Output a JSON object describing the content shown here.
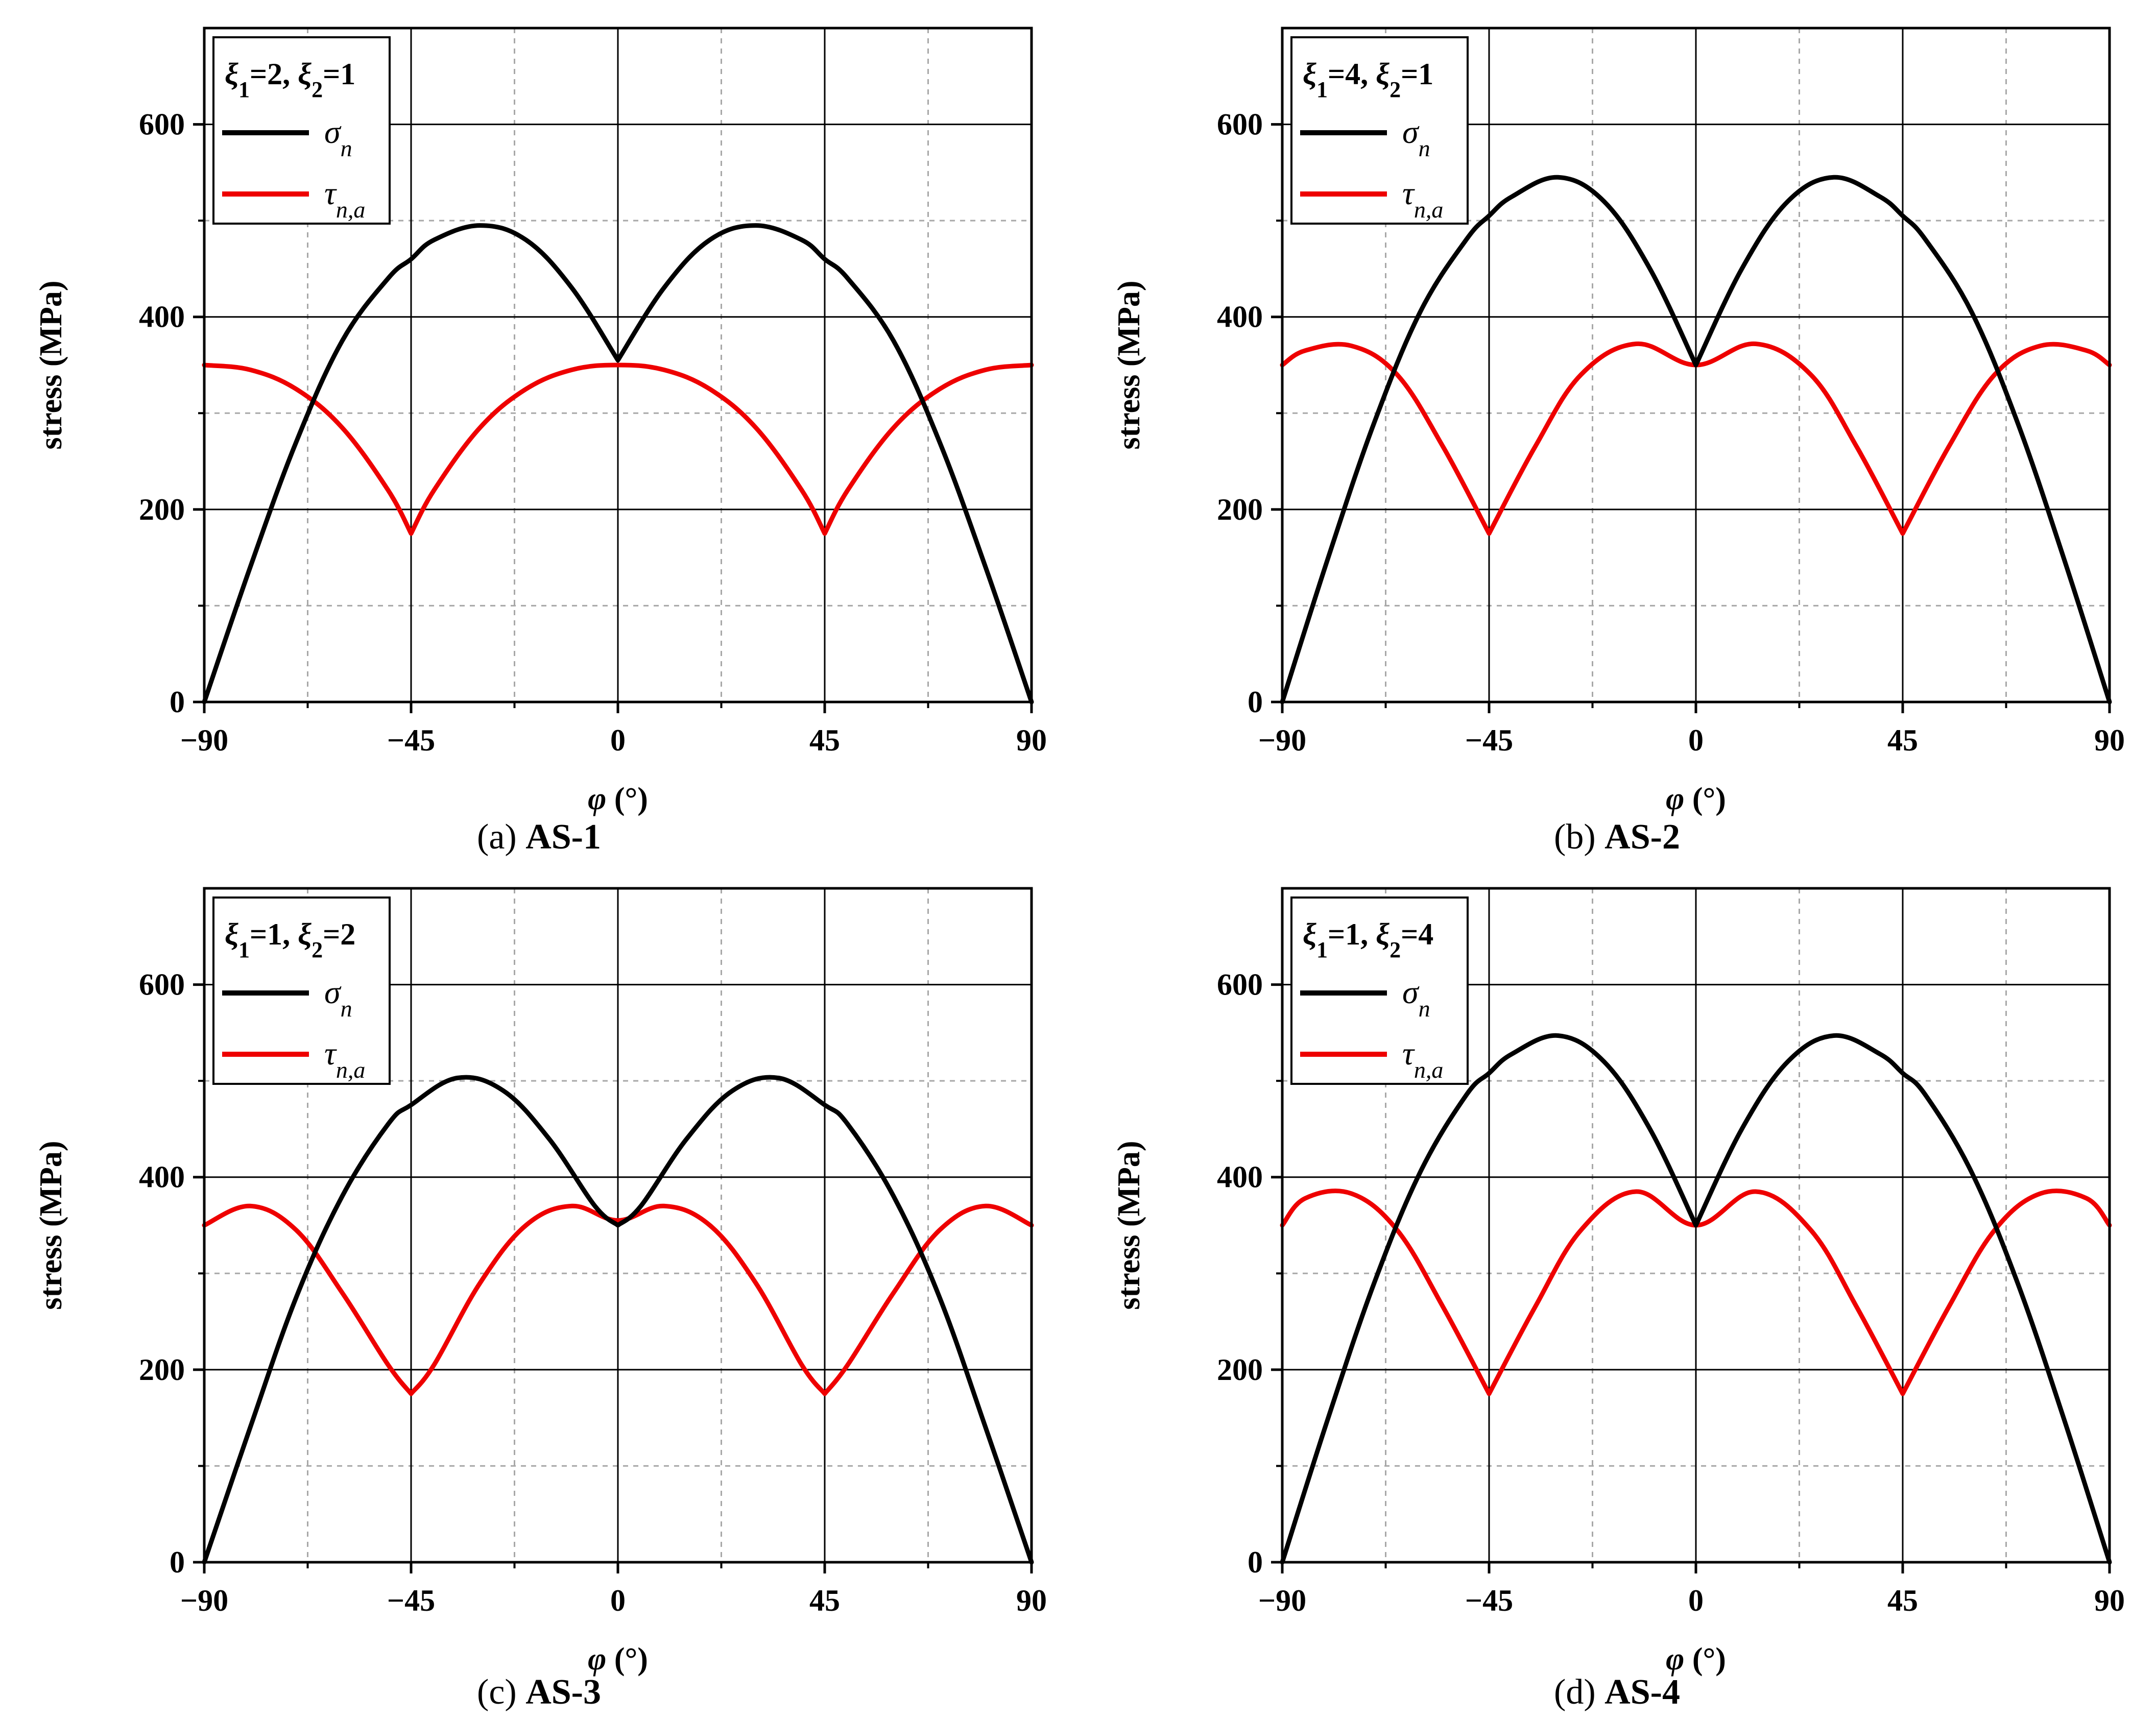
{
  "chart_data": [
    {
      "type": "line",
      "panel": "a",
      "legend_title": "ξ1=2, ξ2=1",
      "caption": {
        "letter": "a",
        "name": "AS-1"
      },
      "xlabel": "φ (°)",
      "ylabel": "stress (MPa)",
      "xlim": [
        -90,
        90
      ],
      "ylim": [
        0,
        700
      ],
      "xticks": [
        "−90",
        "−45",
        "0",
        "45",
        "90"
      ],
      "yticks": [
        "0",
        "200",
        "400",
        "600"
      ],
      "grid": true,
      "legend": "top-left",
      "series": [
        {
          "name": "σn",
          "color": "#000000",
          "x": [
            -90,
            -80,
            -70,
            -60,
            -50,
            -45,
            -40,
            -30,
            -20,
            -10,
            0,
            10,
            20,
            30,
            40,
            45,
            50,
            60,
            70,
            80,
            90
          ],
          "y": [
            0,
            140,
            270,
            375,
            440,
            460,
            480,
            495,
            480,
            430,
            355,
            430,
            480,
            495,
            480,
            460,
            440,
            375,
            270,
            140,
            0
          ]
        },
        {
          "name": "τn,a",
          "color": "#ee0000",
          "x": [
            -90,
            -80,
            -70,
            -60,
            -50,
            -45,
            -40,
            -30,
            -20,
            -10,
            0,
            10,
            20,
            30,
            40,
            45,
            50,
            60,
            70,
            80,
            90
          ],
          "y": [
            350,
            345,
            325,
            285,
            220,
            175,
            220,
            285,
            325,
            345,
            350,
            345,
            325,
            285,
            220,
            175,
            220,
            285,
            325,
            345,
            350
          ]
        }
      ]
    },
    {
      "type": "line",
      "panel": "b",
      "legend_title": "ξ1=4, ξ2=1",
      "caption": {
        "letter": "b",
        "name": "AS-2"
      },
      "xlabel": "φ (°)",
      "ylabel": "stress (MPa)",
      "xlim": [
        -90,
        90
      ],
      "ylim": [
        0,
        700
      ],
      "xticks": [
        "−90",
        "−45",
        "0",
        "45",
        "90"
      ],
      "yticks": [
        "0",
        "200",
        "400",
        "600"
      ],
      "grid": true,
      "legend": "top-left",
      "series": [
        {
          "name": "σn",
          "color": "#000000",
          "x": [
            -90,
            -80,
            -70,
            -60,
            -50,
            -45,
            -40,
            -30,
            -20,
            -10,
            0,
            10,
            20,
            30,
            40,
            45,
            50,
            60,
            70,
            80,
            90
          ],
          "y": [
            0,
            150,
            290,
            405,
            480,
            505,
            525,
            545,
            520,
            450,
            350,
            450,
            520,
            545,
            525,
            505,
            480,
            405,
            290,
            150,
            0
          ]
        },
        {
          "name": "τn,a",
          "color": "#ee0000",
          "x": [
            -90,
            -85,
            -75,
            -65,
            -55,
            -45,
            -35,
            -25,
            -13,
            0,
            13,
            25,
            35,
            45,
            55,
            65,
            75,
            85,
            90
          ],
          "y": [
            350,
            365,
            370,
            340,
            265,
            175,
            265,
            340,
            372,
            350,
            372,
            340,
            265,
            175,
            265,
            340,
            370,
            365,
            350
          ]
        }
      ]
    },
    {
      "type": "line",
      "panel": "c",
      "legend_title": "ξ1=1, ξ2=2",
      "caption": {
        "letter": "c",
        "name": "AS-3"
      },
      "xlabel": "φ (°)",
      "ylabel": "stress (MPa)",
      "xlim": [
        -90,
        90
      ],
      "ylim": [
        0,
        700
      ],
      "xticks": [
        "−90",
        "−45",
        "0",
        "45",
        "90"
      ],
      "yticks": [
        "0",
        "200",
        "400",
        "600"
      ],
      "grid": true,
      "legend": "top-left",
      "series": [
        {
          "name": "σn",
          "color": "#000000",
          "x": [
            -90,
            -80,
            -70,
            -60,
            -50,
            -45,
            -35,
            -25,
            -15,
            -5,
            0,
            5,
            15,
            25,
            35,
            45,
            50,
            60,
            70,
            80,
            90
          ],
          "y": [
            0,
            140,
            275,
            380,
            455,
            475,
            503,
            490,
            440,
            370,
            350,
            370,
            440,
            490,
            503,
            475,
            455,
            380,
            275,
            140,
            0
          ]
        },
        {
          "name": "τn,a",
          "color": "#ee0000",
          "x": [
            -90,
            -80,
            -70,
            -60,
            -50,
            -45,
            -40,
            -30,
            -20,
            -10,
            0,
            10,
            20,
            30,
            40,
            45,
            50,
            60,
            70,
            80,
            90
          ],
          "y": [
            350,
            370,
            345,
            280,
            205,
            175,
            205,
            290,
            350,
            370,
            355,
            370,
            350,
            290,
            205,
            175,
            205,
            280,
            345,
            370,
            350
          ]
        }
      ]
    },
    {
      "type": "line",
      "panel": "d",
      "legend_title": "ξ1=1, ξ2=4",
      "caption": {
        "letter": "d",
        "name": "AS-4"
      },
      "xlabel": "φ (°)",
      "ylabel": "stress (MPa)",
      "xlim": [
        -90,
        90
      ],
      "ylim": [
        0,
        700
      ],
      "xticks": [
        "−90",
        "−45",
        "0",
        "45",
        "90"
      ],
      "yticks": [
        "0",
        "200",
        "400",
        "600"
      ],
      "grid": true,
      "legend": "top-left",
      "series": [
        {
          "name": "σn",
          "color": "#000000",
          "x": [
            -90,
            -80,
            -70,
            -60,
            -50,
            -45,
            -40,
            -30,
            -20,
            -10,
            0,
            10,
            20,
            30,
            40,
            45,
            50,
            60,
            70,
            80,
            90
          ],
          "y": [
            0,
            150,
            290,
            405,
            485,
            508,
            528,
            547,
            520,
            450,
            350,
            450,
            520,
            547,
            528,
            508,
            485,
            405,
            290,
            150,
            0
          ]
        },
        {
          "name": "τn,a",
          "color": "#ee0000",
          "x": [
            -90,
            -85,
            -75,
            -65,
            -55,
            -45,
            -35,
            -25,
            -13,
            0,
            13,
            25,
            35,
            45,
            55,
            65,
            75,
            85,
            90
          ],
          "y": [
            350,
            378,
            383,
            345,
            265,
            175,
            265,
            345,
            385,
            350,
            385,
            345,
            265,
            175,
            265,
            345,
            383,
            378,
            350
          ]
        }
      ]
    }
  ]
}
